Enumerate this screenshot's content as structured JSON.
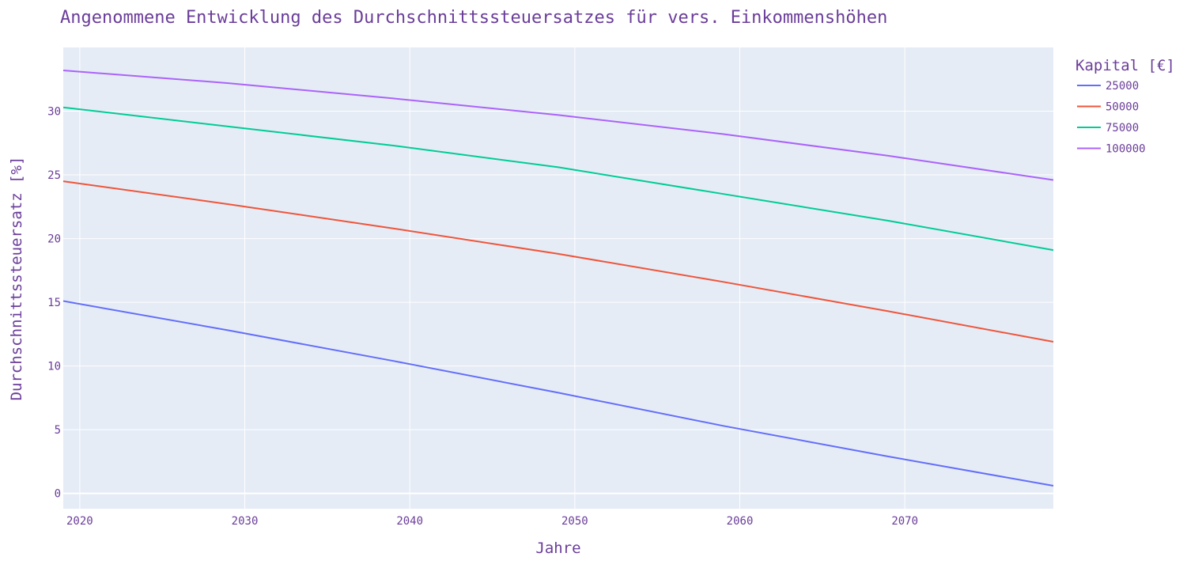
{
  "chart_data": {
    "type": "line",
    "title": "Angenommene Entwicklung des Durchschnittssteuersatzes für vers. Einkommenshöhen",
    "xlabel": "Jahre",
    "ylabel": "Durchschnittssteuersatz [%]",
    "xlim": [
      2019,
      2079
    ],
    "ylim": [
      -1.2,
      35
    ],
    "x_ticks": [
      2020,
      2030,
      2040,
      2050,
      2060,
      2070
    ],
    "y_ticks": [
      0,
      5,
      10,
      15,
      20,
      25,
      30
    ],
    "grid": true,
    "legend": {
      "title": "Kapital [€]",
      "position": "top-right"
    },
    "x": [
      2019,
      2029,
      2039,
      2049,
      2059,
      2069,
      2079
    ],
    "series": [
      {
        "name": "25000",
        "color": "#636efa",
        "values": [
          15.1,
          12.8,
          10.4,
          7.9,
          5.3,
          2.9,
          0.6
        ]
      },
      {
        "name": "50000",
        "color": "#ef553b",
        "values": [
          24.5,
          22.7,
          20.8,
          18.8,
          16.6,
          14.3,
          11.9
        ]
      },
      {
        "name": "75000",
        "color": "#00cc96",
        "values": [
          30.3,
          28.8,
          27.3,
          25.6,
          23.5,
          21.4,
          19.1
        ]
      },
      {
        "name": "100000",
        "color": "#ab63fa",
        "values": [
          33.2,
          32.2,
          31.0,
          29.7,
          28.2,
          26.5,
          24.6
        ]
      }
    ]
  },
  "colors": {
    "plot_background": "#e5ecf6",
    "grid": "#ffffff",
    "text": "#6a3d9a"
  }
}
